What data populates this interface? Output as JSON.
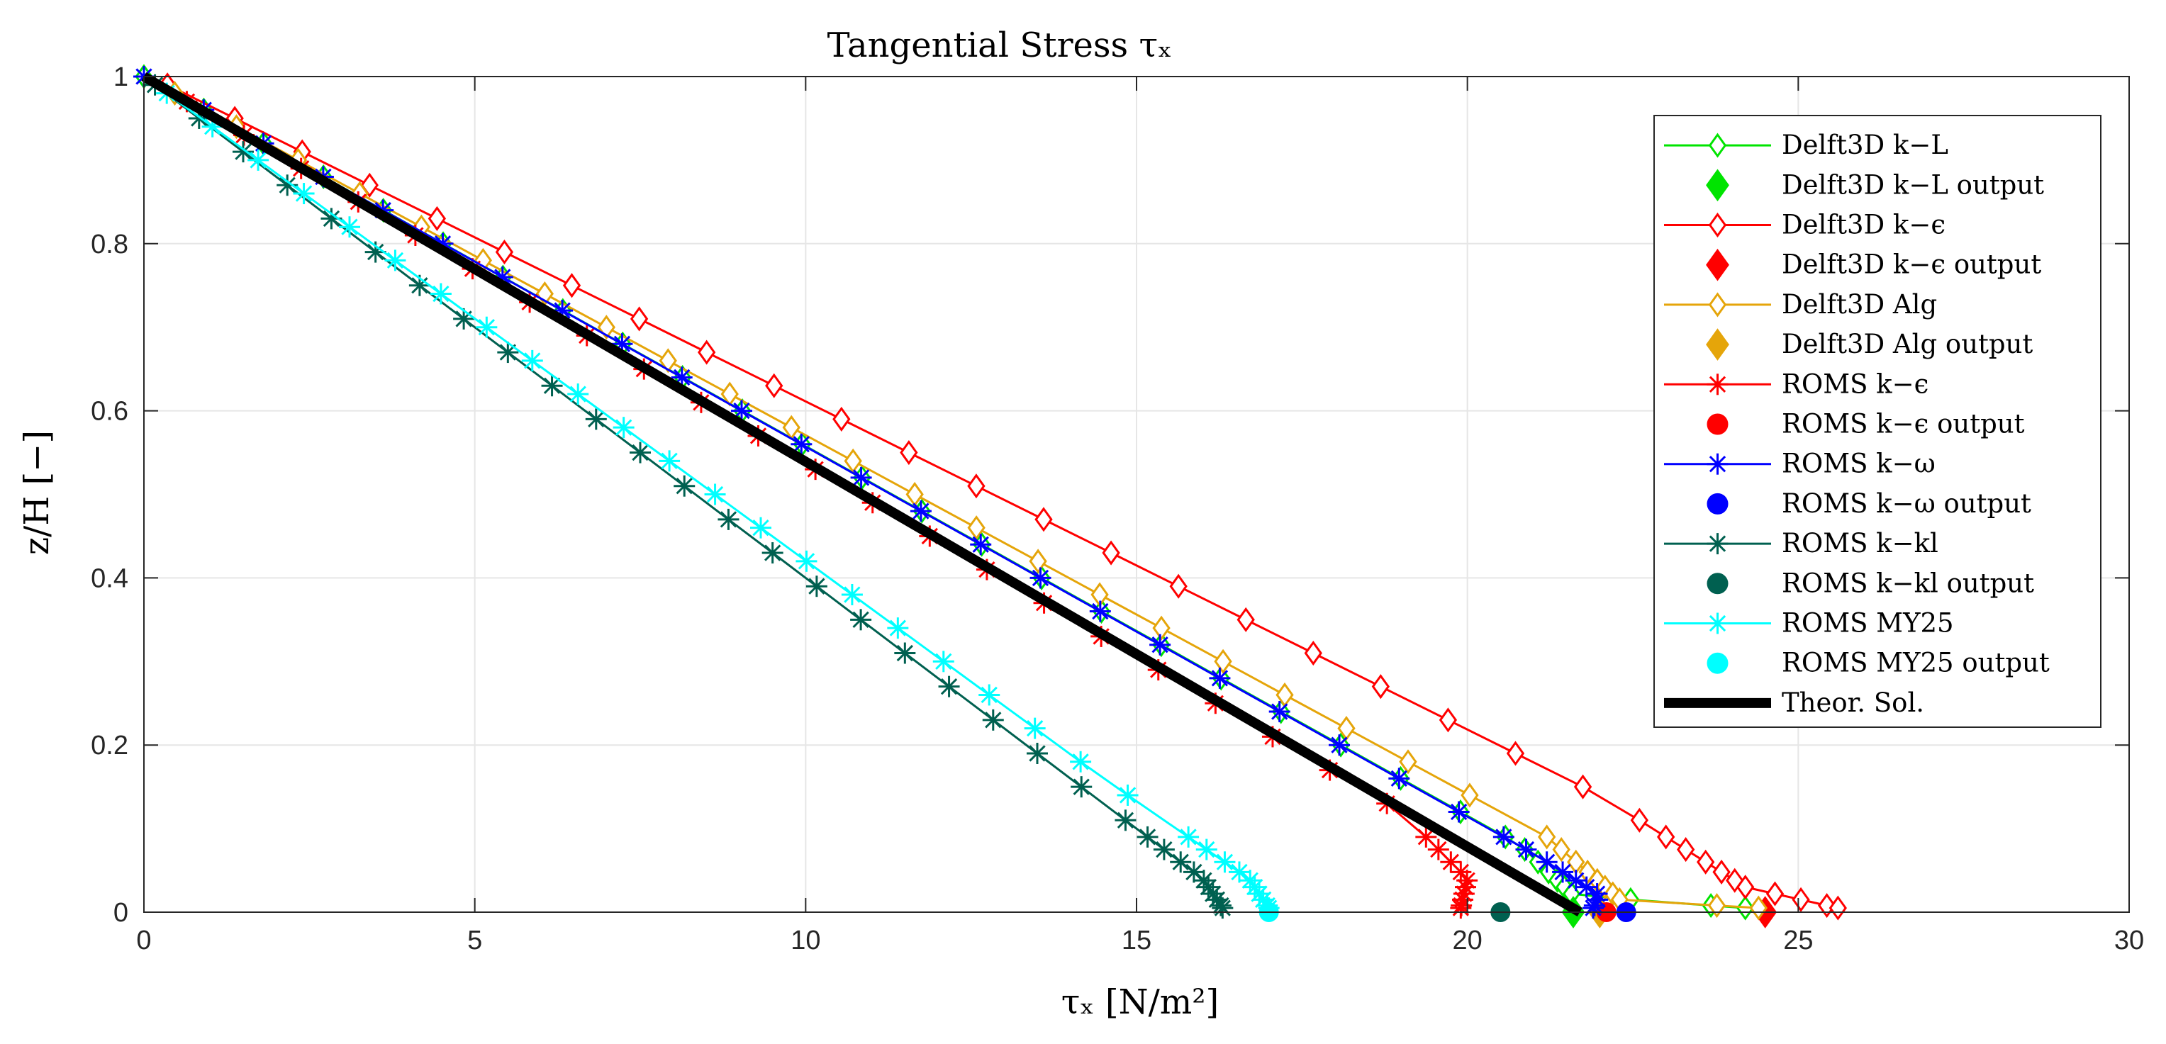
{
  "chart_data": {
    "type": "line",
    "title": "Tangential Stress τₓ",
    "xlabel": "τₓ [N/m²]",
    "ylabel": "z/H [−]",
    "xlim": [
      0,
      30
    ],
    "ylim": [
      0,
      1
    ],
    "xticks": [
      0,
      5,
      10,
      15,
      20,
      25,
      30
    ],
    "yticks": [
      0,
      0.2,
      0.4,
      0.6,
      0.8,
      1
    ],
    "xtick_labels": [
      "0",
      "5",
      "10",
      "15",
      "20",
      "25",
      "30"
    ],
    "ytick_labels": [
      "0",
      "0.2",
      "0.4",
      "0.6",
      "0.8",
      "1"
    ],
    "grid": true,
    "legend_position": "top-right",
    "series": [
      {
        "name": "Delft3D k−L",
        "color": "#00e400",
        "marker": "diamond-open",
        "line": true,
        "profile": [
          [
            0,
            1.0
          ],
          [
            20.8,
            0.08
          ],
          [
            21.6,
            0.02
          ],
          [
            24.2,
            0.005
          ]
        ],
        "marker_step": 0.04,
        "offset": 0.0
      },
      {
        "name": "Delft3D k−L output",
        "color": "#00e400",
        "marker": "diamond-filled",
        "line": false,
        "points": [
          [
            21.6,
            0.0
          ]
        ]
      },
      {
        "name": "Delft3D k−ϵ",
        "color": "#ff0000",
        "marker": "diamond-open",
        "line": true,
        "profile": [
          [
            0.1,
            1.0
          ],
          [
            22.0,
            0.14
          ],
          [
            24.2,
            0.03
          ],
          [
            25.6,
            0.005
          ]
        ],
        "marker_step": 0.04,
        "offset": 0.01
      },
      {
        "name": "Delft3D k−ϵ output",
        "color": "#ff0000",
        "marker": "diamond-filled",
        "line": false,
        "points": [
          [
            24.5,
            0.0
          ]
        ]
      },
      {
        "name": "Delft3D Alg",
        "color": "#e5a50a",
        "marker": "diamond-open",
        "line": true,
        "profile": [
          [
            0,
            1.0
          ],
          [
            21.2,
            0.09
          ],
          [
            22.3,
            0.015
          ],
          [
            24.4,
            0.005
          ]
        ],
        "marker_step": 0.04,
        "offset": 0.02
      },
      {
        "name": "Delft3D Alg output",
        "color": "#e5a50a",
        "marker": "diamond-filled",
        "line": false,
        "points": [
          [
            22.0,
            0.0
          ]
        ]
      },
      {
        "name": "ROMS k−ϵ",
        "color": "#ff0000",
        "marker": "asterisk",
        "line": true,
        "profile": [
          [
            0,
            1.0
          ],
          [
            19.0,
            0.12
          ],
          [
            20.0,
            0.04
          ],
          [
            19.9,
            0.005
          ]
        ],
        "marker_step": 0.04,
        "offset": 0.03
      },
      {
        "name": "ROMS k−ϵ output",
        "color": "#ff0000",
        "marker": "circle-filled",
        "line": false,
        "points": [
          [
            22.1,
            0.0
          ]
        ]
      },
      {
        "name": "ROMS k−ω",
        "color": "#0000ff",
        "marker": "asterisk",
        "line": true,
        "profile": [
          [
            0,
            1.0
          ],
          [
            21.0,
            0.07
          ],
          [
            22.0,
            0.02
          ],
          [
            21.9,
            0.005
          ]
        ],
        "marker_step": 0.04,
        "offset": 0.0
      },
      {
        "name": "ROMS k−ω output",
        "color": "#0000ff",
        "marker": "circle-filled",
        "line": false,
        "points": [
          [
            22.4,
            0.0
          ]
        ]
      },
      {
        "name": "ROMS k−kl",
        "color": "#006050",
        "marker": "asterisk",
        "line": true,
        "profile": [
          [
            0,
            1.0
          ],
          [
            14.0,
            0.16
          ],
          [
            16.0,
            0.04
          ],
          [
            16.3,
            0.005
          ]
        ],
        "marker_step": 0.04,
        "offset": 0.01
      },
      {
        "name": "ROMS k−kl output",
        "color": "#006050",
        "marker": "circle-filled",
        "line": false,
        "points": [
          [
            20.5,
            0.0
          ]
        ]
      },
      {
        "name": "ROMS MY25",
        "color": "#00ffff",
        "marker": "asterisk",
        "line": true,
        "profile": [
          [
            0,
            1.0
          ],
          [
            14.5,
            0.16
          ],
          [
            16.7,
            0.04
          ],
          [
            17.0,
            0.005
          ]
        ],
        "marker_step": 0.04,
        "offset": 0.02
      },
      {
        "name": "ROMS MY25 output",
        "color": "#00ffff",
        "marker": "circle-filled",
        "line": false,
        "points": [
          [
            17.0,
            0.0
          ]
        ]
      },
      {
        "name": "Theor. Sol.",
        "color": "#000000",
        "marker": "none",
        "line": true,
        "linewidth": "thick",
        "points": [
          [
            0,
            1.0
          ],
          [
            21.7,
            0.0
          ]
        ]
      }
    ]
  }
}
